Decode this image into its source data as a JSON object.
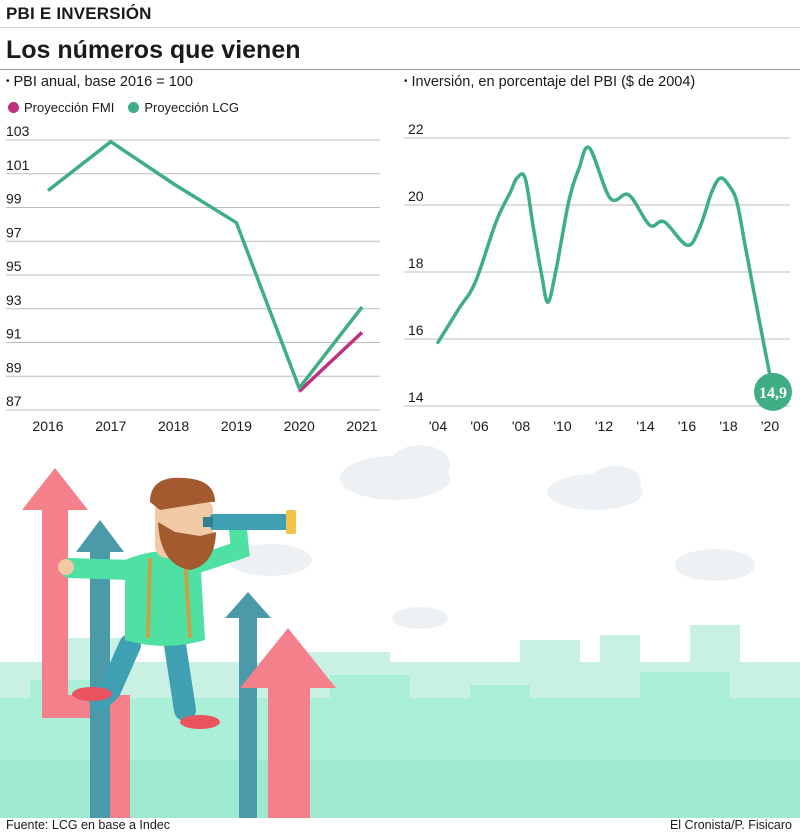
{
  "header": {
    "kicker": "PBI E INVERSIÓN",
    "title": "Los números que vienen"
  },
  "colors": {
    "lcg": "#3fae84",
    "fmi": "#c0317d",
    "grid": "#bdbdbd",
    "badge": "#3fae84"
  },
  "legend": {
    "fmi_label": "Proyección FMI",
    "lcg_label": "Proyección LCG"
  },
  "chart_data": [
    {
      "type": "line",
      "subtitle": "PBI anual, base 2016 = 100",
      "categories": [
        "2016",
        "2017",
        "2018",
        "2019",
        "2020",
        "2021"
      ],
      "yticks": [
        "103",
        "101",
        "99",
        "97",
        "95",
        "93",
        "91",
        "89",
        "87"
      ],
      "ylim": [
        87,
        104
      ],
      "series": [
        {
          "name": "Proyección LCG",
          "values": [
            100,
            102.9,
            100.4,
            98.1,
            88.3,
            93.1
          ]
        },
        {
          "name": "Proyección FMI",
          "values": [
            null,
            null,
            null,
            null,
            88.1,
            91.6
          ]
        }
      ],
      "grid": true
    },
    {
      "type": "line",
      "subtitle": "Inversión, en porcentaje del PBI ($ de 2004)",
      "xticks": [
        "'04",
        "'06",
        "'08",
        "'10",
        "'12",
        "'14",
        "'16",
        "'18",
        "'20"
      ],
      "yticks": [
        "22",
        "20",
        "18",
        "16",
        "14"
      ],
      "ylim": [
        14,
        22
      ],
      "series": [
        {
          "name": "Proyección LCG",
          "x": [
            2004,
            2005,
            2005.8,
            2006.8,
            2007.5,
            2007.8,
            2008.2,
            2008.6,
            2009,
            2009.3,
            2009.7,
            2010.3,
            2010.8,
            2011.3,
            2012.3,
            2013.2,
            2014.2,
            2014.9,
            2016,
            2016.6,
            2017.2,
            2017.6,
            2018,
            2018.4,
            2018.8,
            2019.5,
            2020
          ],
          "y": [
            15.9,
            16.9,
            17.7,
            19.5,
            20.4,
            20.8,
            20.8,
            19.3,
            17.9,
            17.1,
            18.1,
            20.1,
            21.1,
            21.7,
            20.2,
            20.3,
            19.4,
            19.5,
            18.8,
            19.3,
            20.4,
            20.8,
            20.6,
            20.1,
            18.8,
            16.5,
            14.9
          ]
        }
      ],
      "annotation": "14,9",
      "grid": true
    }
  ],
  "footer": {
    "source": "Fuente: LCG en base a Indec",
    "credit": "El Cronista/P. Fisicaro"
  }
}
